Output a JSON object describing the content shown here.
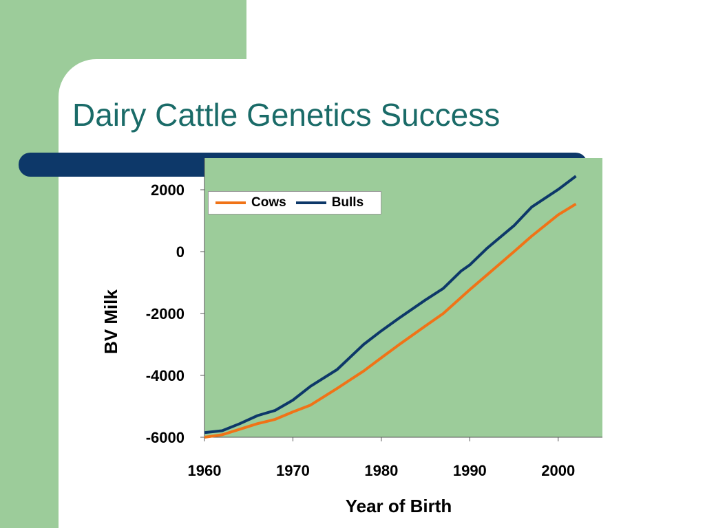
{
  "slide": {
    "title": "Dairy Cattle Genetics Success",
    "colors": {
      "left_band": "#9ccc9a",
      "accent_bar": "#0d3869",
      "title": "#1a6b68",
      "plot_background": "#9ccc9a"
    }
  },
  "chart_data": {
    "type": "line",
    "title": "",
    "xlabel": "Year of Birth",
    "ylabel": "BV Milk",
    "xlim": [
      1960,
      2005
    ],
    "ylim": [
      -6000,
      2000
    ],
    "xticks": [
      1960,
      1970,
      1980,
      1990,
      2000
    ],
    "yticks": [
      2000,
      0,
      -2000,
      -4000,
      -6000
    ],
    "grid": false,
    "legend_position": "top-left",
    "series": [
      {
        "name": "Cows",
        "color": "#f07317",
        "x": [
          1960,
          1962,
          1964,
          1966,
          1968,
          1970,
          1972,
          1975,
          1978,
          1980,
          1982,
          1985,
          1987,
          1990,
          1992,
          1995,
          1997,
          2000,
          2002
        ],
        "y": [
          -6000,
          -5920,
          -5740,
          -5560,
          -5420,
          -5180,
          -4960,
          -4420,
          -3860,
          -3430,
          -3010,
          -2400,
          -2000,
          -1230,
          -740,
          0,
          500,
          1190,
          1540
        ]
      },
      {
        "name": "Bulls",
        "color": "#0d3869",
        "x": [
          1960,
          1962,
          1964,
          1966,
          1968,
          1970,
          1972,
          1975,
          1978,
          1980,
          1982,
          1985,
          1987,
          1989,
          1990,
          1992,
          1995,
          1997,
          2000,
          2002
        ],
        "y": [
          -5850,
          -5790,
          -5560,
          -5300,
          -5130,
          -4800,
          -4350,
          -3810,
          -3000,
          -2560,
          -2150,
          -1560,
          -1190,
          -630,
          -430,
          120,
          840,
          1440,
          2010,
          2440
        ]
      }
    ]
  }
}
